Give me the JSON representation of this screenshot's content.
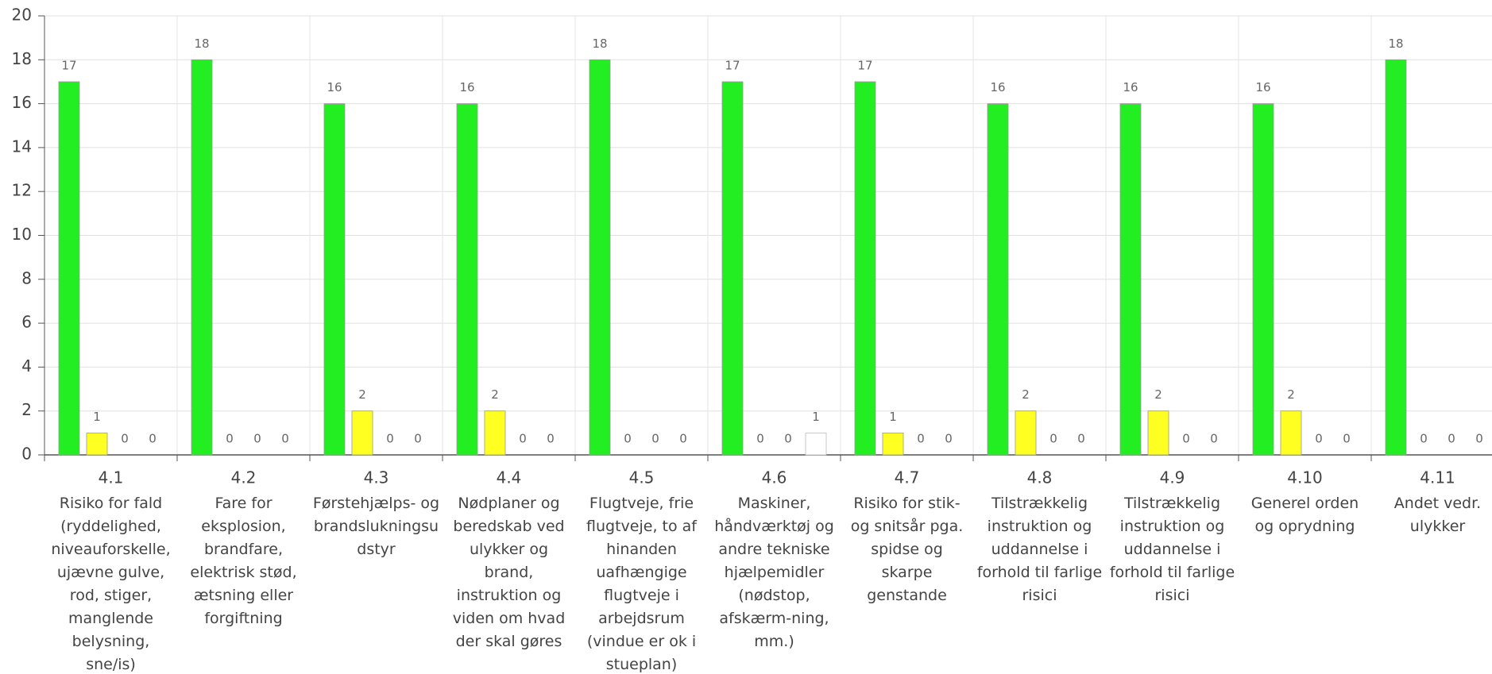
{
  "chart_data": {
    "type": "bar",
    "categories": [
      "4.1",
      "4.2",
      "4.3",
      "4.4",
      "4.5",
      "4.6",
      "4.7",
      "4.8",
      "4.9",
      "4.10",
      "4.11"
    ],
    "category_descriptions": [
      "Risiko for fald (ryddelighed, niveauforskelle, ujævne gulve, rod, stiger, manglende belysning, sne/is)",
      "Fare for eksplosion, brandfare, elektrisk stød, ætsning eller forgiftning",
      "Førstehjælps- og brandslukningsudstyr",
      "Nødplaner og beredskab ved ulykker og brand, instruktion og viden om hvad der skal gøres",
      "Flugtveje, frie flugtveje, to af hinanden uafhængige flugtveje i arbejdsrum (vindue er ok i stueplan)",
      "Maskiner, håndværktøj og andre tekniske hjælpemidler (nødstop, afskærm-ning, mm.)",
      "Risiko for stik- og snitsår pga. spidse og skarpe genstande",
      "Tilstrækkelig instruktion og uddannelse i forhold til farlige risici",
      "Tilstrækkelig instruktion og uddannelse i forhold til farlige risici",
      "Generel orden og oprydning",
      "Andet vedr. ulykker"
    ],
    "series": [
      {
        "color": "#22ee22",
        "values": [
          17,
          18,
          16,
          16,
          18,
          17,
          17,
          16,
          16,
          16,
          18
        ]
      },
      {
        "color": "#ffff22",
        "values": [
          1,
          0,
          2,
          2,
          0,
          0,
          1,
          2,
          2,
          2,
          0
        ]
      },
      {
        "color": "#ff2222",
        "values": [
          0,
          0,
          0,
          0,
          0,
          0,
          0,
          0,
          0,
          0,
          0
        ]
      },
      {
        "color": "#ffffff",
        "values": [
          0,
          0,
          0,
          0,
          0,
          1,
          0,
          0,
          0,
          0,
          0
        ]
      }
    ],
    "ylim": [
      0,
      20
    ],
    "yticks": [
      0,
      2,
      4,
      6,
      8,
      10,
      12,
      14,
      16,
      18,
      20
    ],
    "grid": true
  }
}
